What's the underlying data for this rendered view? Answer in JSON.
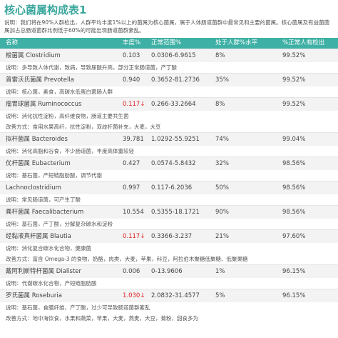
{
  "header": {
    "title": "核心菌属构成表1",
    "description": "说明：我们将在90%人群检出，人群平均丰度1%以上的菌属为核心菌属，属于人体肠道菌群中最常见和主要的菌属。核心菌属及有益菌菌属加占总肠道菌群比例低于60%的可能出现肠道菌群紊乱。"
  },
  "table": {
    "columns": [
      "名称",
      "丰度%",
      "正常范围%",
      "处于人群%水平",
      "%正常人有检出"
    ],
    "alert_color": "#e02020",
    "rows": [
      {
        "name": "梭菌属 Clostridium",
        "abundance": "0.103",
        "range": "0.0306-6.9615",
        "level": "8%",
        "detected": "99.52%",
        "alert": false,
        "notes": [
          "说明：多导致人体代谢，致病，导致尿酸升高，部分正常肠道菌，产丁酸"
        ]
      },
      {
        "name": "普雷沃氏菌属 Prevotella",
        "abundance": "0.940",
        "range": "0.3652-81.2736",
        "level": "35%",
        "detected": "99.52%",
        "alert": false,
        "notes": [
          "说明：核心菌，素食，高碳水低蛋白菌肠人群"
        ]
      },
      {
        "name": "瘤胃球菌属 Ruminococcus",
        "abundance": "0.117↓",
        "range": "0.266-33.2664",
        "level": "8%",
        "detected": "99.52%",
        "alert": true,
        "notes": [
          "说明：消化抗性淀粉，高纤维食物，肠道主要共生菌",
          "改善方式：食用水果高纤，抗性淀粉，双歧杆菌补充，大麦，大豆"
        ]
      },
      {
        "name": "拟杆菌属 Bacteroides",
        "abundance": "39.781",
        "range": "1.0292-55.9251",
        "level": "74%",
        "detected": "99.04%",
        "alert": false,
        "notes": [
          "说明：消化高脂和谷食，不少肠道菌，丰度高体重较轻"
        ]
      },
      {
        "name": "优杆菌属 Eubacterium",
        "abundance": "0.427",
        "range": "0.0574-5.8432",
        "level": "32%",
        "detected": "98.56%",
        "alert": false,
        "notes": [
          "说明：基石菌，产短链脂肪酸，调节代谢"
        ]
      },
      {
        "name": "Lachnoclostridium",
        "abundance": "0.997",
        "range": "0.117-6.2036",
        "level": "50%",
        "detected": "98.56%",
        "alert": false,
        "notes": [
          "说明：常见肠道菌，可产生丁酸"
        ]
      },
      {
        "name": "粪杆菌属 Faecalibacterium",
        "abundance": "10.554",
        "range": "0.5355-18.1721",
        "level": "90%",
        "detected": "98.56%",
        "alert": false,
        "notes": [
          "说明：基石菌，产丁酸，分解复杂碳水和淀粉"
        ]
      },
      {
        "name": "经黏液真杆菌属 Blautia",
        "abundance": "0.117↓",
        "range": "0.3366-3.237",
        "level": "21%",
        "detected": "97.60%",
        "alert": true,
        "notes": [
          "说明：消化复合碳水化合物，健康菌",
          "改善方式：富含 Omega-3 的食物，奶酪，肉类，大麦，苹果，科豆，阿拉伯木聚糖低聚糖、低聚果糖"
        ]
      },
      {
        "name": "戴阿利斯特杆菌属 Dialister",
        "abundance": "0.006",
        "range": "0-13.9606",
        "level": "1%",
        "detected": "96.15%",
        "alert": false,
        "notes": [
          "说明：代谢碳水化合物，产短链脂肪酸"
        ]
      },
      {
        "name": "罗氏菌属 Roseburia",
        "abundance": "1.030↓",
        "range": "2.0832-31.4577",
        "level": "5%",
        "detected": "96.15%",
        "alert": true,
        "notes": [
          "说明：基石菌，食膳纤维，产丁酸，过少可导致肠道菌群紊乱",
          "改善方式：地中海饮食，水果和蔬菜，苹果，大麦，燕麦，大豆，菊粉，甜食多为"
        ]
      }
    ]
  }
}
